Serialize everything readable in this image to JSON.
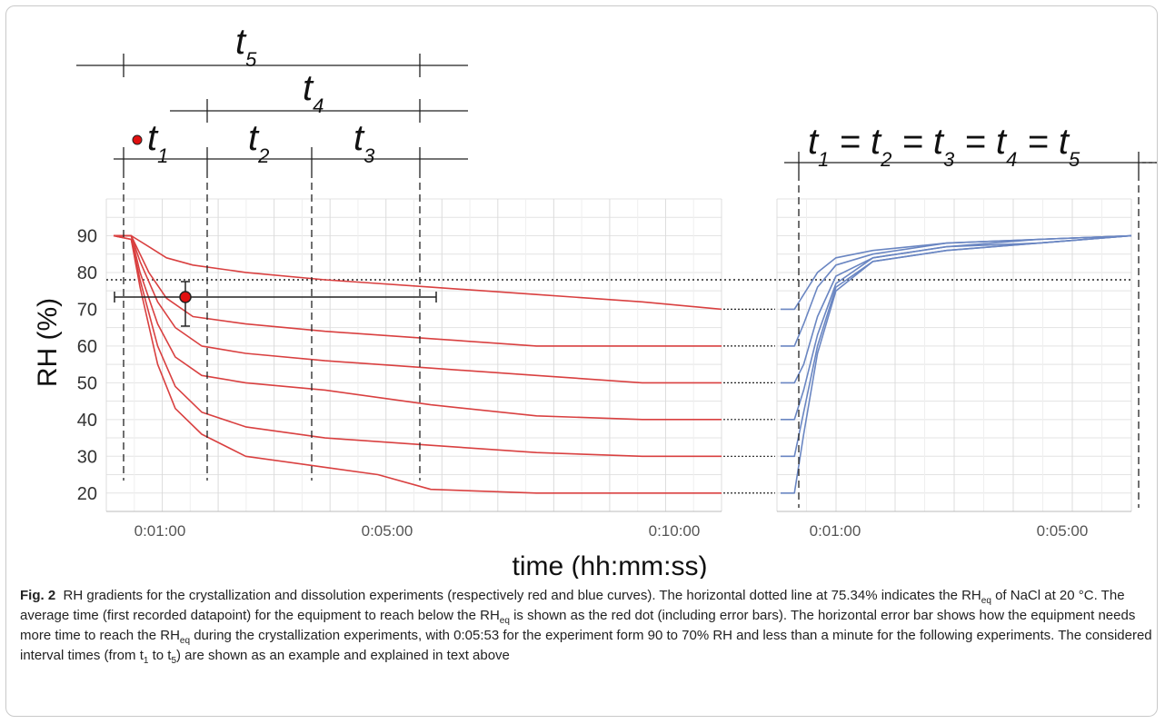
{
  "chart_data": [
    {
      "type": "line",
      "panel": "crystallization",
      "ylabel": "RH (%)",
      "xlabel": "time (hh:mm:ss)",
      "ylim": [
        15,
        100
      ],
      "yticks": [
        20,
        30,
        40,
        50,
        60,
        70,
        80,
        90
      ],
      "xtick_labels": [
        "0:01:00",
        "0:05:00",
        "0:10:00"
      ],
      "grid": true,
      "curve_color": "#d94040",
      "reference_line": {
        "label": "RHeq",
        "value": 75.34,
        "style": "dotted"
      },
      "red_dot": {
        "time": "0:01:30",
        "rh": 71,
        "x_error": [
          "0:00:10",
          "0:05:53"
        ],
        "y_error": [
          63,
          76
        ]
      },
      "series": [
        {
          "x": [
            0,
            20,
            40,
            60,
            90,
            150,
            240,
            360,
            480,
            600,
            690
          ],
          "y": [
            90,
            90,
            87,
            84,
            82,
            80,
            78,
            76,
            74,
            72,
            70
          ]
        },
        {
          "x": [
            0,
            20,
            30,
            40,
            60,
            90,
            150,
            240,
            360,
            480,
            600,
            690
          ],
          "y": [
            90,
            90,
            85,
            80,
            73,
            68,
            66,
            64,
            62,
            60,
            60,
            60
          ]
        },
        {
          "x": [
            0,
            20,
            30,
            50,
            70,
            100,
            150,
            240,
            360,
            480,
            600,
            690
          ],
          "y": [
            90,
            90,
            83,
            72,
            65,
            60,
            58,
            56,
            54,
            52,
            50,
            50
          ]
        },
        {
          "x": [
            0,
            20,
            30,
            50,
            70,
            100,
            150,
            240,
            360,
            480,
            600,
            690
          ],
          "y": [
            90,
            90,
            80,
            66,
            57,
            52,
            50,
            48,
            44,
            41,
            40,
            40
          ]
        },
        {
          "x": [
            0,
            20,
            30,
            50,
            70,
            100,
            150,
            240,
            360,
            480,
            600,
            690
          ],
          "y": [
            90,
            89,
            78,
            60,
            49,
            42,
            38,
            35,
            33,
            31,
            30,
            30
          ]
        },
        {
          "x": [
            0,
            20,
            30,
            50,
            70,
            100,
            150,
            240,
            300,
            360,
            480,
            600,
            690
          ],
          "y": [
            90,
            89,
            76,
            55,
            43,
            36,
            30,
            27,
            25,
            21,
            20,
            20,
            20
          ]
        }
      ]
    },
    {
      "type": "line",
      "panel": "dissolution",
      "ylim": [
        15,
        100
      ],
      "xtick_labels": [
        "0:01:00",
        "0:05:00"
      ],
      "grid": true,
      "curve_color": "#6a86c2",
      "series": [
        {
          "x": [
            0,
            15,
            25,
            40,
            60,
            100,
            180,
            280,
            380
          ],
          "y": [
            70,
            70,
            74,
            80,
            84,
            86,
            88,
            89,
            90
          ]
        },
        {
          "x": [
            0,
            15,
            25,
            40,
            60,
            100,
            180,
            280,
            380
          ],
          "y": [
            60,
            60,
            66,
            76,
            82,
            85,
            88,
            89,
            90
          ]
        },
        {
          "x": [
            0,
            15,
            25,
            40,
            60,
            100,
            180,
            280,
            380
          ],
          "y": [
            50,
            50,
            55,
            68,
            79,
            84,
            87,
            89,
            90
          ]
        },
        {
          "x": [
            0,
            15,
            25,
            40,
            60,
            100,
            180,
            280,
            380
          ],
          "y": [
            40,
            40,
            48,
            63,
            77,
            84,
            87,
            88,
            90
          ]
        },
        {
          "x": [
            0,
            15,
            25,
            40,
            60,
            100,
            180,
            280,
            380
          ],
          "y": [
            30,
            30,
            42,
            60,
            76,
            83,
            86,
            88,
            90
          ]
        },
        {
          "x": [
            0,
            15,
            25,
            40,
            60,
            100,
            180,
            280,
            380
          ],
          "y": [
            20,
            20,
            36,
            58,
            75,
            83,
            86,
            88,
            90
          ]
        }
      ]
    }
  ],
  "intervals": {
    "left": {
      "t5": "t",
      "t5_sub": "5",
      "t4": "t",
      "t4_sub": "4",
      "t1": "t",
      "t1_sub": "1",
      "t2": "t",
      "t2_sub": "2",
      "t3": "t",
      "t3_sub": "3"
    },
    "right_equation": [
      "t",
      "1",
      " = t",
      "2",
      " = t",
      "3",
      " = t",
      "4",
      " = t",
      "5"
    ]
  },
  "caption": {
    "label": "Fig. 2",
    "text_1": "RH gradients for the crystallization and dissolution experiments (respectively red and blue curves). The horizontal dotted line at 75.34% indicates the RH",
    "sub_eq": "eq",
    "text_2": " of NaCl at 20 °C. The average time (first recorded datapoint) for the equipment to reach below the RH",
    "text_3": " is shown as the red dot (including error bars). The horizontal error bar shows how the equipment needs more time to reach the RH",
    "text_4": " during the crystallization experiments, with 0:05:53 for the experiment form 90 to 70% RH and less than a minute for the following experiments. The considered interval times (from t",
    "sub_1": "1",
    "text_5": " to t",
    "sub_5": "5",
    "text_6": ") are shown as an example and explained in text above"
  }
}
